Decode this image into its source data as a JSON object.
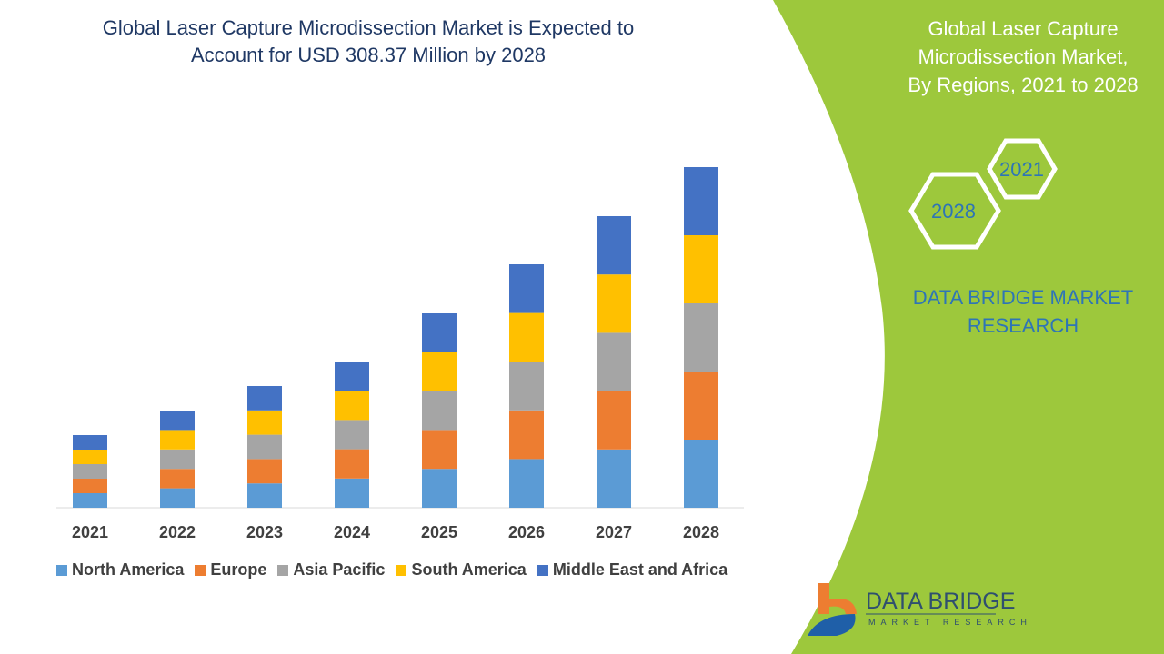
{
  "header": {
    "title_line1": "Global Laser Capture Microdissection Market is Expected to",
    "title_line2": "Account for USD 308.37 Million by 2028"
  },
  "side": {
    "title_line1": "Global Laser Capture",
    "title_line2": "Microdissection Market,",
    "title_line3": "By Regions, 2021 to 2028",
    "hex_start": "2021",
    "hex_end": "2028",
    "brand_line1": "DATA BRIDGE MARKET",
    "brand_line2": "RESEARCH",
    "logo_title": "DATA BRIDGE",
    "logo_subtitle": "MARKET RESEARCH"
  },
  "colors": {
    "green": "#9dc83c",
    "title": "#1f3864",
    "brand": "#2e75b6"
  },
  "chart_data": {
    "type": "bar",
    "stacked": true,
    "categories": [
      "2021",
      "2022",
      "2023",
      "2024",
      "2025",
      "2026",
      "2027",
      "2028"
    ],
    "series": [
      {
        "name": "North America",
        "color": "#5b9bd5",
        "values": [
          16,
          21.4,
          26.8,
          32.2,
          42.8,
          53.6,
          64.2,
          75
        ]
      },
      {
        "name": "Europe",
        "color": "#ed7d31",
        "values": [
          16,
          21.4,
          26.8,
          32.2,
          42.8,
          53.6,
          64.2,
          75
        ]
      },
      {
        "name": "Asia Pacific",
        "color": "#a5a5a5",
        "values": [
          16,
          21.4,
          26.8,
          32.2,
          42.8,
          53.6,
          64.2,
          75
        ]
      },
      {
        "name": "South America",
        "color": "#ffc000",
        "values": [
          16,
          21.4,
          26.8,
          32.2,
          42.8,
          53.6,
          64.2,
          75
        ]
      },
      {
        "name": "Middle East and Africa",
        "color": "#4472c4",
        "values": [
          16,
          21.4,
          26.8,
          32.2,
          42.8,
          53.6,
          64.2,
          75
        ]
      }
    ],
    "legend": "bottom",
    "grid": false
  }
}
